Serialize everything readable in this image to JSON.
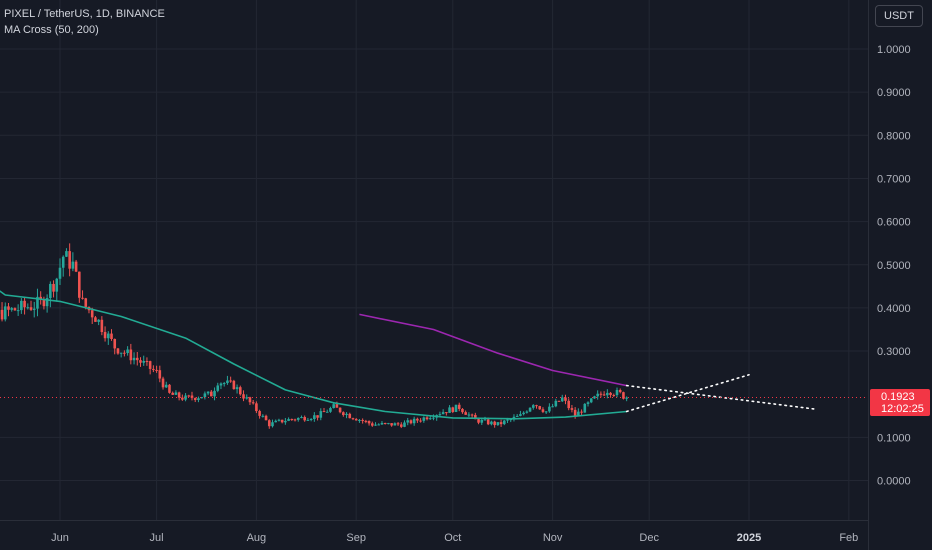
{
  "header": {
    "symbol_line": "PIXEL / TetherUS, 1D, BINANCE",
    "indicator_line": "MA Cross (50, 200)"
  },
  "toolbar": {
    "currency_label": "USDT"
  },
  "last_price": {
    "price": "0.1923",
    "countdown": "12:02:25"
  },
  "colors": {
    "background": "#161a25",
    "grid": "#232733",
    "up_candle": "#26a69a",
    "down_candle": "#ef5350",
    "ma50": "#22ab94",
    "ma200": "#9c27b0",
    "last_price_tag": "#f23645",
    "projection": "#ffffff"
  },
  "chart_data": {
    "type": "candlestick",
    "symbol": "PIXEL / TetherUS",
    "interval": "1D",
    "exchange": "BINANCE",
    "y_axis": {
      "ticks": [
        "1.0000",
        "0.9000",
        "0.8000",
        "0.7000",
        "0.6000",
        "0.5000",
        "0.4000",
        "0.3000",
        "0.1000",
        "0.0000"
      ],
      "range": [
        -0.1,
        1.15
      ]
    },
    "x_axis": {
      "ticks": [
        {
          "label": "Jun",
          "date": "2024-06-01",
          "bold": false
        },
        {
          "label": "Jul",
          "date": "2024-07-01",
          "bold": false
        },
        {
          "label": "Aug",
          "date": "2024-08-01",
          "bold": false
        },
        {
          "label": "Sep",
          "date": "2024-09-01",
          "bold": false
        },
        {
          "label": "Oct",
          "date": "2024-10-01",
          "bold": false
        },
        {
          "label": "Nov",
          "date": "2024-11-01",
          "bold": false
        },
        {
          "label": "Dec",
          "date": "2024-12-01",
          "bold": false
        },
        {
          "label": "2025",
          "date": "2025-01-01",
          "bold": true
        },
        {
          "label": "Feb",
          "date": "2025-02-01",
          "bold": false
        }
      ]
    },
    "price_path": [
      {
        "date": "2024-04-30",
        "close": 0.36
      },
      {
        "date": "2024-05-10",
        "close": 0.38
      },
      {
        "date": "2024-05-20",
        "close": 0.4
      },
      {
        "date": "2024-05-26",
        "close": 0.41
      },
      {
        "date": "2024-05-31",
        "close": 0.47
      },
      {
        "date": "2024-06-02",
        "close": 0.52
      },
      {
        "date": "2024-06-05",
        "close": 0.5
      },
      {
        "date": "2024-06-08",
        "close": 0.41
      },
      {
        "date": "2024-06-12",
        "close": 0.38
      },
      {
        "date": "2024-06-18",
        "close": 0.31
      },
      {
        "date": "2024-06-25",
        "close": 0.28
      },
      {
        "date": "2024-07-01",
        "close": 0.25
      },
      {
        "date": "2024-07-05",
        "close": 0.2
      },
      {
        "date": "2024-07-10",
        "close": 0.19
      },
      {
        "date": "2024-07-18",
        "close": 0.2
      },
      {
        "date": "2024-07-20",
        "close": 0.23
      },
      {
        "date": "2024-07-25",
        "close": 0.22
      },
      {
        "date": "2024-07-30",
        "close": 0.18
      },
      {
        "date": "2024-08-05",
        "close": 0.13
      },
      {
        "date": "2024-08-10",
        "close": 0.14
      },
      {
        "date": "2024-08-20",
        "close": 0.15
      },
      {
        "date": "2024-08-25",
        "close": 0.17
      },
      {
        "date": "2024-08-30",
        "close": 0.15
      },
      {
        "date": "2024-09-06",
        "close": 0.13
      },
      {
        "date": "2024-09-15",
        "close": 0.13
      },
      {
        "date": "2024-09-20",
        "close": 0.14
      },
      {
        "date": "2024-09-28",
        "close": 0.16
      },
      {
        "date": "2024-10-03",
        "close": 0.17
      },
      {
        "date": "2024-10-08",
        "close": 0.14
      },
      {
        "date": "2024-10-15",
        "close": 0.13
      },
      {
        "date": "2024-10-22",
        "close": 0.15
      },
      {
        "date": "2024-10-26",
        "close": 0.18
      },
      {
        "date": "2024-10-30",
        "close": 0.16
      },
      {
        "date": "2024-11-04",
        "close": 0.19
      },
      {
        "date": "2024-11-08",
        "close": 0.15
      },
      {
        "date": "2024-11-14",
        "close": 0.19
      },
      {
        "date": "2024-11-18",
        "close": 0.21
      },
      {
        "date": "2024-11-22",
        "close": 0.2
      },
      {
        "date": "2024-11-24",
        "close": 0.1923
      }
    ],
    "series": [
      {
        "name": "MA 50",
        "points": [
          {
            "date": "2024-04-30",
            "value": 0.51
          },
          {
            "date": "2024-05-15",
            "value": 0.43
          },
          {
            "date": "2024-06-01",
            "value": 0.415
          },
          {
            "date": "2024-06-20",
            "value": 0.38
          },
          {
            "date": "2024-07-10",
            "value": 0.33
          },
          {
            "date": "2024-07-25",
            "value": 0.27
          },
          {
            "date": "2024-08-10",
            "value": 0.21
          },
          {
            "date": "2024-08-25",
            "value": 0.18
          },
          {
            "date": "2024-09-10",
            "value": 0.16
          },
          {
            "date": "2024-10-01",
            "value": 0.145
          },
          {
            "date": "2024-10-20",
            "value": 0.143
          },
          {
            "date": "2024-11-05",
            "value": 0.147
          },
          {
            "date": "2024-11-24",
            "value": 0.16
          }
        ]
      },
      {
        "name": "MA 200",
        "points": [
          {
            "date": "2024-09-02",
            "value": 0.385
          },
          {
            "date": "2024-09-25",
            "value": 0.35
          },
          {
            "date": "2024-10-15",
            "value": 0.295
          },
          {
            "date": "2024-11-01",
            "value": 0.255
          },
          {
            "date": "2024-11-24",
            "value": 0.22
          }
        ]
      }
    ],
    "projections": [
      {
        "from": {
          "date": "2024-11-24",
          "value": 0.16
        },
        "to": {
          "date": "2025-01-01",
          "value": 0.245
        }
      },
      {
        "from": {
          "date": "2024-11-24",
          "value": 0.22
        },
        "to": {
          "date": "2025-01-22",
          "value": 0.165
        }
      }
    ],
    "last_price": 0.1923
  }
}
